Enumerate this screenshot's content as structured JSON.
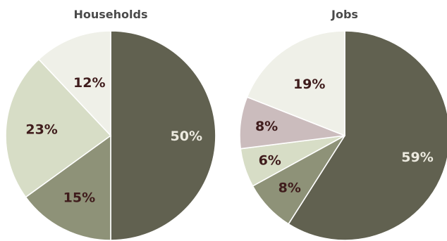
{
  "chart_data": [
    {
      "type": "pie",
      "title": "Households",
      "categories": [
        "",
        "",
        "",
        ""
      ],
      "values": [
        50,
        15,
        23,
        12
      ],
      "labels": [
        "50%",
        "15%",
        "23%",
        "12%"
      ],
      "colors": [
        "#616150",
        "#8e9278",
        "#d7ddc6",
        "#eff0e8"
      ],
      "label_colors": [
        "#eceadf",
        "#3f1c1c",
        "#3f1c1c",
        "#3f1c1c"
      ],
      "start_angle_deg": 0,
      "direction": "clockwise"
    },
    {
      "type": "pie",
      "title": "Jobs",
      "categories": [
        "",
        "",
        "",
        "",
        ""
      ],
      "values": [
        59,
        8,
        6,
        8,
        19
      ],
      "labels": [
        "59%",
        "8%",
        "6%",
        "8%",
        "19%"
      ],
      "colors": [
        "#616150",
        "#8e9278",
        "#d7ddc6",
        "#cbbcbd",
        "#eff0e8"
      ],
      "label_colors": [
        "#eceadf",
        "#3f1c1c",
        "#3f1c1c",
        "#3f1c1c",
        "#3f1c1c"
      ],
      "start_angle_deg": 0,
      "direction": "clockwise"
    }
  ]
}
